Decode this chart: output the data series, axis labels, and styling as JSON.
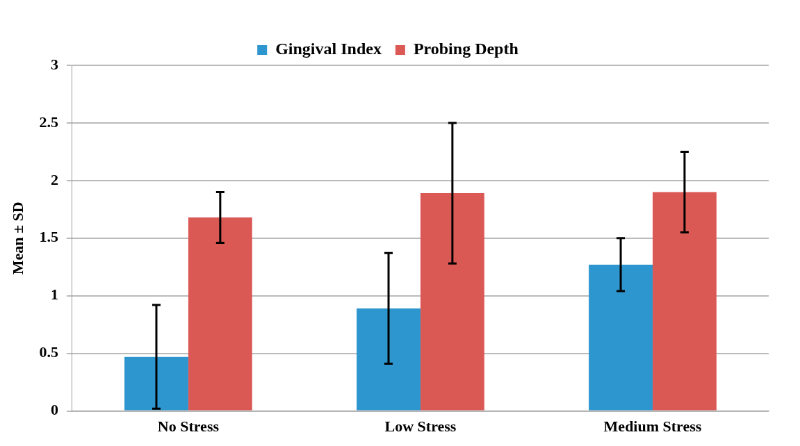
{
  "chart_data": {
    "type": "bar",
    "ylabel": "Mean ± SD",
    "categories": [
      "No Stress",
      "Low Stress",
      "Medium Stress"
    ],
    "series": [
      {
        "name": "Gingival Index",
        "color": "#2e96cf",
        "values": [
          0.47,
          0.89,
          1.27
        ],
        "errors": [
          0.45,
          0.48,
          0.23
        ]
      },
      {
        "name": "Probing Depth",
        "color": "#db5955",
        "values": [
          1.68,
          1.89,
          1.9
        ],
        "errors": [
          0.22,
          0.61,
          0.35
        ]
      }
    ],
    "ylim": [
      0,
      3
    ],
    "yticks": [
      0,
      0.5,
      1,
      1.5,
      2,
      2.5,
      3
    ],
    "grid": "y",
    "legend": "top"
  }
}
